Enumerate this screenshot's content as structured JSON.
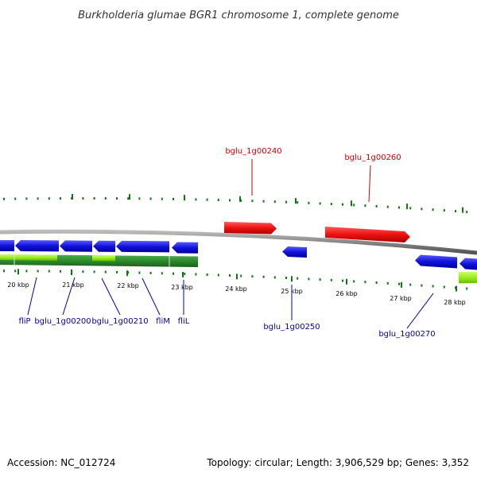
{
  "title": "Burkholderia glumae BGR1 chromosome 1, complete genome",
  "footer": {
    "accession": "Accession: NC_012724",
    "summary": "Topology: circular; Length: 3,906,529 bp; Genes: 3,352"
  },
  "colors": {
    "forward_gene": "#ee1111",
    "reverse_gene": "#1111dd",
    "backbone": "#888888",
    "tick": "#117711",
    "green_band": "#2e8b2e",
    "lime_band": "#99ee22",
    "forward_label": "#cc0000",
    "reverse_label": "#0000aa"
  },
  "kbp_ticks": [
    "20 kbp",
    "21 kbp",
    "22 kbp",
    "23 kbp",
    "24 kbp",
    "25 kbp",
    "26 kbp",
    "27 kbp",
    "28 kbp"
  ],
  "genes": [
    {
      "label": "fliP",
      "strand": "reverse"
    },
    {
      "label": "bglu_1g00200",
      "strand": "reverse"
    },
    {
      "label": "bglu_1g00210",
      "strand": "reverse"
    },
    {
      "label": "fliM",
      "strand": "reverse"
    },
    {
      "label": "fliL",
      "strand": "reverse"
    },
    {
      "label": "bglu_1g00240",
      "strand": "forward"
    },
    {
      "label": "bglu_1g00250",
      "strand": "reverse"
    },
    {
      "label": "bglu_1g00260",
      "strand": "forward"
    },
    {
      "label": "bglu_1g00270",
      "strand": "reverse"
    }
  ]
}
